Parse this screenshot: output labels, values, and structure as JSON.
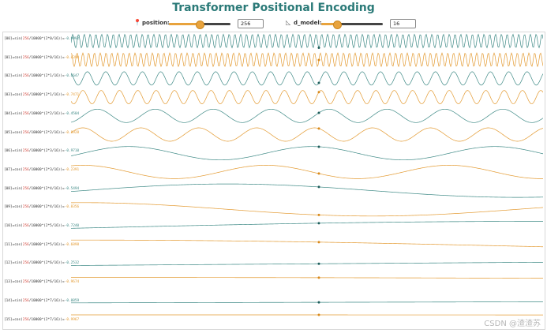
{
  "title": "Transformer Positional Encoding",
  "controls": {
    "position": {
      "icon": "pin-icon",
      "label": "position:",
      "value": "256",
      "fraction": 0.5
    },
    "d_model": {
      "icon": "chart-icon",
      "label": "d_model:",
      "value": "16",
      "fraction": 0.25
    }
  },
  "colors": {
    "sin": "#3f8a86",
    "cos": "#e39a31",
    "pos": "#d2453b",
    "title": "#2b7a78"
  },
  "rows": [
    {
      "idx": "[00]",
      "fn": "sin",
      "pos": "256",
      "expo": "(2*0/16)",
      "value": "-0.9992"
    },
    {
      "idx": "[01]",
      "fn": "cos",
      "pos": "256",
      "expo": "(2*0/16)",
      "value": "-0.0398"
    },
    {
      "idx": "[02]",
      "fn": "sin",
      "pos": "256",
      "expo": "(2*1/16)",
      "value": "-0.6647"
    },
    {
      "idx": "[03]",
      "fn": "cos",
      "pos": "256",
      "expo": "(2*1/16)",
      "value": "-0.7471"
    },
    {
      "idx": "[04]",
      "fn": "sin",
      "pos": "256",
      "expo": "(2*2/16)",
      "value": "-0.4504"
    },
    {
      "idx": "[05]",
      "fn": "cos",
      "pos": "256",
      "expo": "(2*2/16)",
      "value": "-0.8928"
    },
    {
      "idx": "[06]",
      "fn": "sin",
      "pos": "256",
      "expo": "(2*3/16)",
      "value": "-0.9710"
    },
    {
      "idx": "[07]",
      "fn": "cos",
      "pos": "256",
      "expo": "(2*3/16)",
      "value": "-0.2391"
    },
    {
      "idx": "[08]",
      "fn": "sin",
      "pos": "256",
      "expo": "(2*4/16)",
      "value": "-0.5494"
    },
    {
      "idx": "[09]",
      "fn": "cos",
      "pos": "256",
      "expo": "(2*4/16)",
      "value": "-0.8356"
    },
    {
      "idx": "[10]",
      "fn": "sin",
      "pos": "256",
      "expo": "(2*5/16)",
      "value": "-0.7240"
    },
    {
      "idx": "[11]",
      "fn": "cos",
      "pos": "256",
      "expo": "(2*5/16)",
      "value": "-0.6898"
    },
    {
      "idx": "[12]",
      "fn": "sin",
      "pos": "256",
      "expo": "(2*6/16)",
      "value": "-0.2532"
    },
    {
      "idx": "[13]",
      "fn": "cos",
      "pos": "256",
      "expo": "(2*6/16)",
      "value": "-0.9674"
    },
    {
      "idx": "[14]",
      "fn": "sin",
      "pos": "256",
      "expo": "(2*7/16)",
      "value": "-0.0859"
    },
    {
      "idx": "[15]",
      "fn": "cos",
      "pos": "256",
      "expo": "(2*7/16)",
      "value": "-0.9967"
    }
  ],
  "watermark": "CSDN @渣渣苏"
}
